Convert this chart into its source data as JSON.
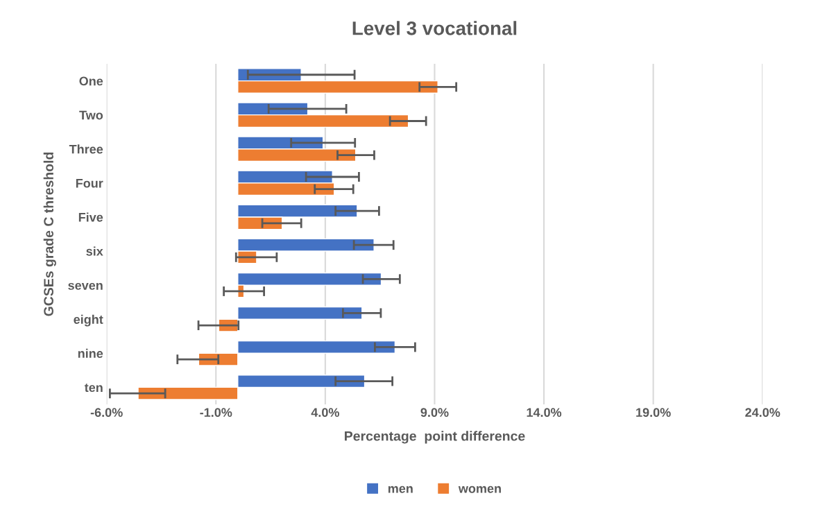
{
  "chart_data": {
    "type": "bar",
    "orientation": "horizontal",
    "title": "Level 3 vocational",
    "xlabel": "Percentage  point difference",
    "ylabel": "GCSEs grade C threshold",
    "categories": [
      "One",
      "Two",
      "Three",
      "Four",
      "Five",
      "six",
      "seven",
      "eight",
      "nine",
      "ten"
    ],
    "series": [
      {
        "name": "men",
        "color": "#4472c4",
        "values": [
          2.9,
          3.2,
          3.9,
          4.33,
          5.46,
          6.23,
          6.56,
          5.68,
          7.19,
          5.8
        ],
        "errors": [
          [
            0.46,
            5.34
          ],
          [
            1.41,
            4.96
          ],
          [
            2.44,
            5.36
          ],
          [
            3.12,
            5.54
          ],
          [
            4.47,
            6.46
          ],
          [
            5.31,
            7.12
          ],
          [
            5.72,
            7.41
          ],
          [
            4.81,
            6.54
          ],
          [
            6.27,
            8.11
          ],
          [
            4.47,
            7.07
          ]
        ]
      },
      {
        "name": "women",
        "color": "#ed7d31",
        "values": [
          9.15,
          7.8,
          5.39,
          4.41,
          2.03,
          0.86,
          0.28,
          -0.87,
          -1.79,
          -4.56
        ],
        "errors": [
          [
            8.31,
            9.99
          ],
          [
            6.96,
            8.61
          ],
          [
            4.56,
            6.24
          ],
          [
            3.52,
            5.28
          ],
          [
            1.12,
            2.9
          ],
          [
            -0.08,
            1.78
          ],
          [
            -0.64,
            1.2
          ],
          [
            -1.8,
            0.03
          ],
          [
            -2.76,
            -0.89
          ],
          [
            -5.85,
            -3.32
          ]
        ]
      }
    ],
    "xlim": [
      -6,
      24
    ],
    "xticks": [
      {
        "value": -6,
        "label": "-6.0%"
      },
      {
        "value": -1,
        "label": "-1.0%"
      },
      {
        "value": 4,
        "label": "4.0%"
      },
      {
        "value": 9,
        "label": "9.0%"
      },
      {
        "value": 14,
        "label": "14.0%"
      },
      {
        "value": 19,
        "label": "19.0%"
      },
      {
        "value": 24,
        "label": "24.0%"
      }
    ],
    "grid": "x",
    "legend": "bottom"
  }
}
